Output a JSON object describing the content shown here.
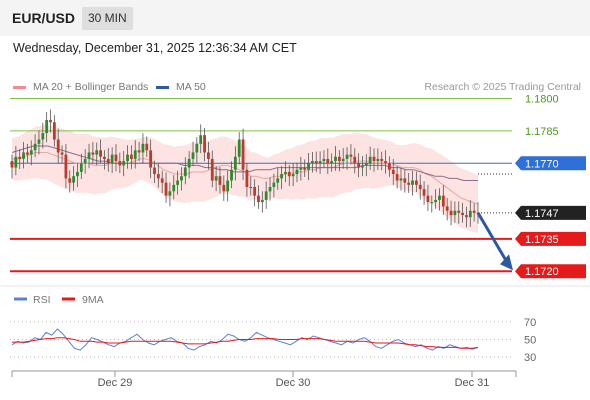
{
  "header": {
    "pair": "EUR/USD",
    "timeframe": "30 MIN"
  },
  "timestamp": "Wednesday, December 31, 2025 12:36:34 AM CET",
  "legend": {
    "items": [
      {
        "label": "MA 20 + Bollinger Bands",
        "color": "#f08c8c"
      },
      {
        "label": "MA 50",
        "color": "#2c5aa0"
      }
    ],
    "source": "Research © 2025 Trading Central"
  },
  "colors": {
    "up": "#2f8a2f",
    "down": "#c0392b",
    "resistance": "#7dc242",
    "pivot": "#2f6fd8",
    "support": "#e51a1a",
    "last": "#222222",
    "arrow": "#2c5aa0",
    "band": "#fde3e1",
    "rsi": "#5b7fd6",
    "rsi_ma": "#e51a1a"
  },
  "chart_data": [
    {
      "type": "candlestick",
      "title": "EUR/USD",
      "timeframe": "30 MIN",
      "x_tick_labels": [
        "Dec 29",
        "Dec 30",
        "Dec 31"
      ],
      "ylim": [
        1.1715,
        1.1803
      ],
      "levels": [
        {
          "label": "1.1800",
          "value": 1.18,
          "kind": "resistance"
        },
        {
          "label": "1.1785",
          "value": 1.1785,
          "kind": "resistance"
        },
        {
          "label": "1.1770",
          "value": 1.177,
          "kind": "pivot"
        },
        {
          "label": "1.1747",
          "value": 1.1747,
          "kind": "last"
        },
        {
          "label": "1.1735",
          "value": 1.1735,
          "kind": "support"
        },
        {
          "label": "1.1720",
          "value": 1.172,
          "kind": "support"
        }
      ],
      "close": [
        1.1768,
        1.1773,
        1.1772,
        1.1775,
        1.1774,
        1.1776,
        1.1779,
        1.1781,
        1.1784,
        1.179,
        1.1789,
        1.1781,
        1.1775,
        1.1774,
        1.1763,
        1.1761,
        1.1764,
        1.1766,
        1.177,
        1.1772,
        1.1775,
        1.1774,
        1.1776,
        1.1773,
        1.1772,
        1.177,
        1.1774,
        1.1771,
        1.1769,
        1.1771,
        1.1774,
        1.1772,
        1.1776,
        1.1775,
        1.1779,
        1.1776,
        1.1768,
        1.1765,
        1.1763,
        1.1761,
        1.1755,
        1.1757,
        1.176,
        1.1762,
        1.1764,
        1.1768,
        1.1772,
        1.1775,
        1.1779,
        1.1783,
        1.1775,
        1.1772,
        1.1762,
        1.1764,
        1.176,
        1.1757,
        1.1762,
        1.1767,
        1.1773,
        1.1781,
        1.1767,
        1.1759,
        1.1759,
        1.1755,
        1.1752,
        1.1753,
        1.1757,
        1.1759,
        1.1761,
        1.1763,
        1.1765,
        1.1766,
        1.1764,
        1.1765,
        1.1767,
        1.1768,
        1.1767,
        1.177,
        1.1771,
        1.177,
        1.1771,
        1.1772,
        1.177,
        1.1771,
        1.1773,
        1.1771,
        1.1772,
        1.1774,
        1.1773,
        1.177,
        1.1768,
        1.1769,
        1.177,
        1.1773,
        1.1771,
        1.1772,
        1.1771,
        1.177,
        1.1767,
        1.1765,
        1.1762,
        1.1763,
        1.1761,
        1.176,
        1.1762,
        1.176,
        1.1758,
        1.1755,
        1.1752,
        1.1752,
        1.1753,
        1.1755,
        1.175,
        1.1748,
        1.1746,
        1.1748,
        1.1747,
        1.1746,
        1.1745,
        1.1748,
        1.1747,
        1.1747
      ],
      "ma50": [
        1.1775,
        1.1776,
        1.1777,
        1.1778,
        1.1778,
        1.1778,
        1.1777,
        1.1776,
        1.1775,
        1.1774,
        1.1773,
        1.1772,
        1.1771,
        1.1771,
        1.177,
        1.177,
        1.177,
        1.177,
        1.177,
        1.177,
        1.177,
        1.177,
        1.177,
        1.177,
        1.1769,
        1.1769,
        1.1769,
        1.1768,
        1.1768,
        1.1767,
        1.1767,
        1.1766,
        1.1766,
        1.1766,
        1.1767,
        1.1767,
        1.1767,
        1.1768,
        1.1768,
        1.1768,
        1.1768,
        1.1768,
        1.1768,
        1.1768,
        1.1768,
        1.1768,
        1.1768,
        1.1768,
        1.1768,
        1.1769,
        1.1769,
        1.1769,
        1.1769,
        1.1768,
        1.1768,
        1.1767,
        1.1767,
        1.1766,
        1.1765,
        1.1764,
        1.1764,
        1.1763,
        1.1763,
        1.1762,
        1.1762,
        1.1762
      ],
      "ma20": [
        1.1772,
        1.1772,
        1.1773,
        1.1774,
        1.1775,
        1.1775,
        1.1775,
        1.1774,
        1.1773,
        1.1772,
        1.1771,
        1.177,
        1.177,
        1.177,
        1.1769,
        1.1769,
        1.1769,
        1.177,
        1.177,
        1.177,
        1.177,
        1.1771,
        1.1772,
        1.1772,
        1.1771,
        1.1769,
        1.1767,
        1.1766,
        1.1765,
        1.1765,
        1.1765,
        1.1766,
        1.1766,
        1.1766,
        1.1767,
        1.1768,
        1.1769,
        1.1769,
        1.1768,
        1.1767,
        1.1766,
        1.1764,
        1.1764,
        1.1763,
        1.1763,
        1.1764,
        1.1764,
        1.1765,
        1.1765,
        1.1766,
        1.1766,
        1.1767,
        1.1767,
        1.1768,
        1.1768,
        1.1768,
        1.1769,
        1.177,
        1.177,
        1.1771,
        1.1771,
        1.1771,
        1.177,
        1.177,
        1.177,
        1.177,
        1.1769,
        1.1768,
        1.1768,
        1.1768,
        1.1767,
        1.1765,
        1.1764,
        1.1762,
        1.176,
        1.1758,
        1.1756,
        1.1754,
        1.1753,
        1.1752,
        1.1751
      ],
      "band_width": 0.0012
    },
    {
      "type": "line",
      "title": "RSI",
      "ylim": [
        20,
        80
      ],
      "y_ticks": [
        70,
        50,
        30
      ],
      "series": [
        {
          "name": "RSI",
          "values": [
            44,
            48,
            46,
            47,
            52,
            50,
            58,
            55,
            62,
            56,
            48,
            40,
            38,
            44,
            52,
            50,
            47,
            44,
            42,
            46,
            48,
            52,
            56,
            50,
            46,
            44,
            48,
            50,
            52,
            48,
            46,
            40,
            38,
            42,
            44,
            48,
            46,
            50,
            56,
            54,
            50,
            48,
            52,
            58,
            55,
            52,
            50,
            48,
            46,
            44,
            48,
            52,
            50,
            54,
            52,
            50,
            48,
            46,
            44,
            48,
            46,
            50,
            52,
            48,
            42,
            40,
            44,
            48,
            50,
            46,
            44,
            42,
            44,
            40,
            38,
            42,
            40,
            44,
            42,
            40,
            41,
            39,
            41
          ]
        },
        {
          "name": "9MA",
          "values": [
            47,
            47,
            47,
            48,
            49,
            50,
            51,
            51,
            52,
            52,
            51,
            50,
            48,
            48,
            48,
            47,
            47,
            46,
            46,
            46,
            47,
            48,
            48,
            48,
            48,
            48,
            48,
            48,
            48,
            47,
            46,
            45,
            45,
            45,
            45,
            46,
            47,
            48,
            48,
            49,
            50,
            50,
            50,
            51,
            51,
            51,
            51,
            50,
            50,
            50,
            50,
            51,
            51,
            51,
            51,
            50,
            49,
            48,
            48,
            48,
            48,
            48,
            48,
            47,
            46,
            46,
            46,
            46,
            46,
            45,
            44,
            44,
            43,
            42,
            42,
            41,
            41,
            41,
            41,
            40,
            40,
            40,
            41
          ]
        }
      ]
    }
  ]
}
